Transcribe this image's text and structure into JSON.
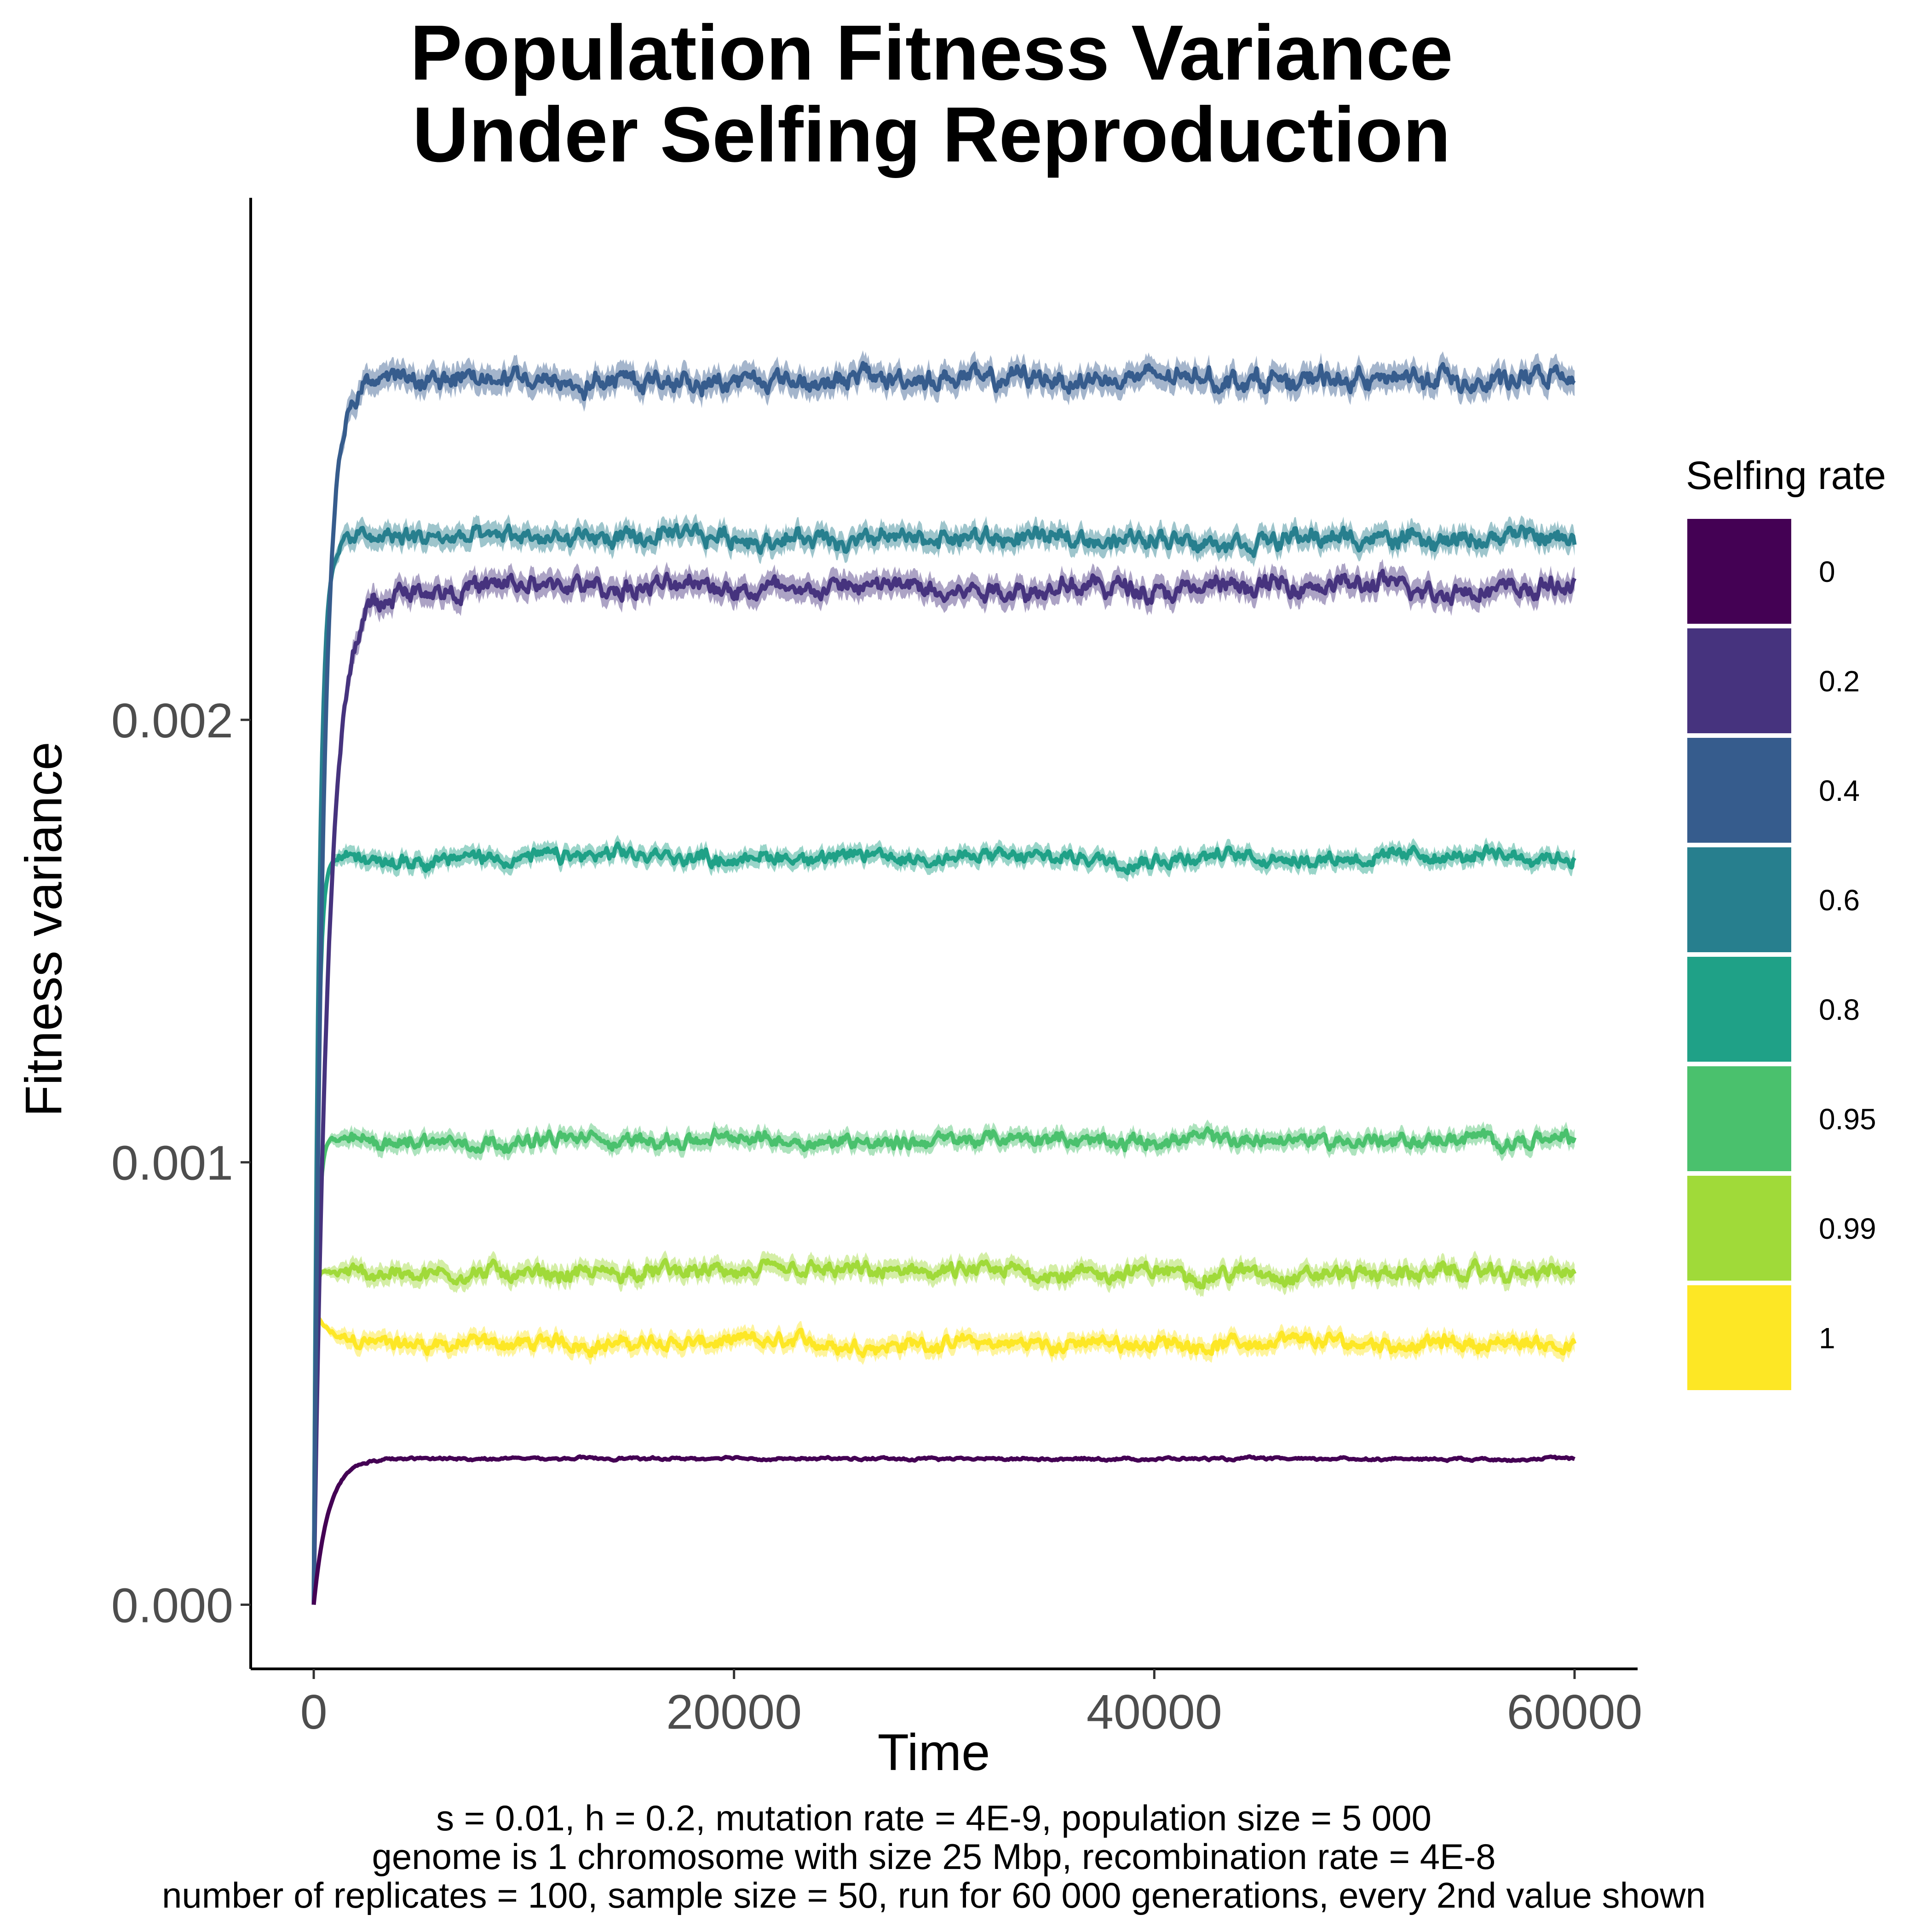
{
  "title_lines": [
    "Population Fitness Variance",
    "Under Selfing Reproduction"
  ],
  "caption_lines": [
    "s = 0.01, h = 0.2, mutation rate = 4E-9, population size = 5 000",
    "genome is 1 chromosome with size 25 Mbp, recombination rate = 4E-8",
    "number of replicates = 100, sample size = 50, run for 60 000 generations, every 2nd value shown"
  ],
  "legend": {
    "title": "Selfing rate",
    "items": [
      {
        "label": "0",
        "color": "#440154"
      },
      {
        "label": "0.2",
        "color": "#46337E"
      },
      {
        "label": "0.4",
        "color": "#365C8D"
      },
      {
        "label": "0.6",
        "color": "#277F8E"
      },
      {
        "label": "0.8",
        "color": "#1FA187"
      },
      {
        "label": "0.95",
        "color": "#4AC16D"
      },
      {
        "label": "0.99",
        "color": "#A0DA39"
      },
      {
        "label": "1",
        "color": "#FDE725"
      }
    ]
  },
  "chart_data": {
    "type": "line",
    "xlabel": "Time",
    "ylabel": "Fitness variance",
    "xlim": [
      -3000,
      63000
    ],
    "ylim": [
      -0.000145,
      0.00318
    ],
    "x_ticks": [
      0,
      20000,
      40000,
      60000
    ],
    "x_tick_labels": [
      "0",
      "20000",
      "40000",
      "60000"
    ],
    "y_ticks": [
      0,
      0.001,
      0.002
    ],
    "y_tick_labels": [
      "0.000",
      "0.001",
      "0.002"
    ],
    "grid": false,
    "legend_position": "right",
    "x_range": [
      0,
      60000
    ],
    "series": [
      {
        "name": "0",
        "color": "#440154",
        "plateau": 0.00033,
        "rise_time": 700,
        "noise": 2e-06
      },
      {
        "name": "0.2",
        "color": "#46337E",
        "plateau": 0.0023,
        "rise_time": 700,
        "noise": 1.5e-05
      },
      {
        "name": "0.4",
        "color": "#365C8D",
        "plateau": 0.00277,
        "rise_time": 450,
        "noise": 1.6e-05
      },
      {
        "name": "0.6",
        "color": "#277F8E",
        "plateau": 0.00241,
        "rise_time": 250,
        "noise": 1.4e-05
      },
      {
        "name": "0.8",
        "color": "#1FA187",
        "plateau": 0.00169,
        "rise_time": 180,
        "noise": 1.1e-05
      },
      {
        "name": "0.95",
        "color": "#4AC16D",
        "plateau": 0.00105,
        "rise_time": 150,
        "noise": 1.1e-05
      },
      {
        "name": "0.99",
        "color": "#A0DA39",
        "plateau": 0.00075,
        "rise_time": 60,
        "noise": 1.2e-05
      },
      {
        "name": "1",
        "color": "#FDE725",
        "plateau": 0.00059,
        "rise_time": 60,
        "noise": 1.1e-05,
        "peak": 0.00067
      }
    ]
  }
}
